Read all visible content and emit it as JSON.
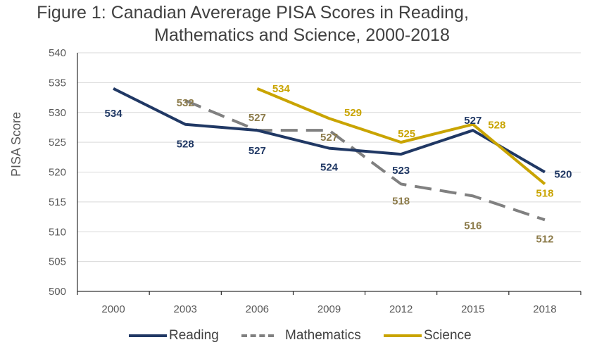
{
  "chart_data": {
    "type": "line",
    "title_line1": "Figure 1: Canadian Avererage PISA Scores in Reading,",
    "title_line2": "Mathematics and Science, 2000-2018",
    "xlabel": "",
    "ylabel": "PISA Score",
    "ylim": [
      500,
      540
    ],
    "yticks": [
      "500",
      "505",
      "510",
      "515",
      "520",
      "525",
      "530",
      "535",
      "540"
    ],
    "categories": [
      "2000",
      "2003",
      "2006",
      "2009",
      "2012",
      "2015",
      "2018"
    ],
    "grid": "horizontal",
    "legend_position": "bottom",
    "series": [
      {
        "name": "Reading",
        "color": "#203864",
        "dash": "solid",
        "values": [
          534,
          528,
          527,
          524,
          523,
          527,
          520
        ]
      },
      {
        "name": "Mathematics",
        "color": "#808080",
        "dash": "dashed",
        "values": [
          null,
          532,
          527,
          527,
          518,
          516,
          512
        ]
      },
      {
        "name": "Science",
        "color": "#C9A400",
        "dash": "solid",
        "values": [
          null,
          null,
          534,
          529,
          525,
          528,
          518
        ]
      }
    ],
    "label_colors": {
      "Reading": "#203864",
      "Mathematics": "#8C7B4A",
      "Science": "#C9A400"
    }
  }
}
